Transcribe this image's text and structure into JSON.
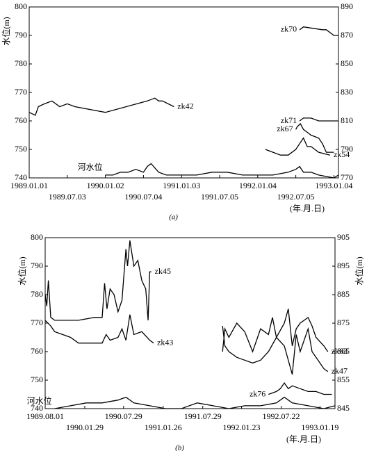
{
  "chart_data": [
    {
      "type": "line",
      "caption": "(a)",
      "y_label": "水位(m)",
      "x_unit_label": "(年.月.日)",
      "color": "#000000",
      "xlim": [
        1989.0,
        1993.06
      ],
      "xticks": [
        {
          "value": 1989.0,
          "label": "1989.01.01"
        },
        {
          "value": 1989.5,
          "label": "1989.07.03"
        },
        {
          "value": 1990.0,
          "label": "1990.01.02"
        },
        {
          "value": 1990.5,
          "label": "1990.07.04"
        },
        {
          "value": 1991.0,
          "label": "1991.01.03"
        },
        {
          "value": 1991.5,
          "label": "1991.07.05"
        },
        {
          "value": 1992.0,
          "label": "1992.01.04"
        },
        {
          "value": 1992.5,
          "label": "1992.07.05"
        },
        {
          "value": 1993.0,
          "label": "1993.01.04"
        }
      ],
      "ylim": [
        740,
        800
      ],
      "yticks": [
        740,
        750,
        760,
        770,
        780,
        790,
        800
      ],
      "y2lim": [
        770,
        890
      ],
      "y2ticks": [
        770,
        790,
        810,
        830,
        850,
        870,
        890
      ],
      "series": [
        {
          "name": "河水位",
          "x": [
            1990.0,
            1990.1,
            1990.2,
            1990.3,
            1990.4,
            1990.5,
            1990.55,
            1990.6,
            1990.7,
            1990.8,
            1990.9,
            1991.0,
            1991.2,
            1991.4,
            1991.5,
            1991.6,
            1991.8,
            1992.0,
            1992.2,
            1992.4,
            1992.5,
            1992.55,
            1992.6,
            1992.7,
            1992.8,
            1993.0,
            1993.06
          ],
          "values": [
            741,
            741,
            742,
            742,
            743,
            742,
            744,
            745,
            742,
            741,
            741,
            741,
            741,
            742,
            742,
            742,
            741,
            741,
            741,
            742,
            743,
            744,
            742,
            742,
            741,
            740,
            741
          ]
        },
        {
          "name": "zk42",
          "x": [
            1989.0,
            1989.08,
            1989.12,
            1989.2,
            1989.3,
            1989.4,
            1989.5,
            1989.6,
            1989.8,
            1990.0,
            1990.55,
            1990.65,
            1990.7,
            1990.75,
            1990.9
          ],
          "values": [
            763,
            762,
            765,
            766,
            767,
            765,
            766,
            765,
            764,
            763,
            767,
            768,
            767,
            767,
            765
          ]
        },
        {
          "name": "zk70",
          "x": [
            1992.55,
            1992.6,
            1992.85,
            1992.9,
            1993.0,
            1993.06
          ],
          "values": [
            792,
            793,
            792,
            792,
            790,
            790
          ]
        },
        {
          "name": "zk71",
          "x": [
            1992.55,
            1992.6,
            1992.7,
            1992.8,
            1992.9,
            1993.0,
            1993.05
          ],
          "values": [
            760,
            761,
            761,
            760,
            760,
            760,
            760
          ]
        },
        {
          "name": "zk67",
          "x": [
            1992.5,
            1992.52,
            1992.56,
            1992.6,
            1992.65,
            1992.7,
            1992.8,
            1992.85,
            1992.9,
            1993.0
          ],
          "values": [
            757,
            758,
            759,
            757,
            756,
            755,
            754,
            752,
            749,
            749
          ]
        },
        {
          "name": "zk54",
          "x": [
            1992.1,
            1992.2,
            1992.3,
            1992.4,
            1992.5,
            1992.55,
            1992.6,
            1992.65,
            1992.7,
            1992.8,
            1992.95
          ],
          "values": [
            750,
            749,
            748,
            748,
            750,
            752,
            754,
            751,
            751,
            749,
            748
          ]
        }
      ]
    },
    {
      "type": "line",
      "caption": "(b)",
      "y_label": "水位(m)",
      "y2_label": "水位(m)",
      "x_unit_label": "(年.月.日)",
      "color": "#000000",
      "xlim": [
        1989.58,
        1993.24
      ],
      "xticks": [
        {
          "value": 1989.58,
          "label": "1989.08.01"
        },
        {
          "value": 1990.08,
          "label": "1990.01.29"
        },
        {
          "value": 1990.57,
          "label": "1990.07.29"
        },
        {
          "value": 1991.07,
          "label": "1991.01.26"
        },
        {
          "value": 1991.57,
          "label": "1991.07.29"
        },
        {
          "value": 1992.06,
          "label": "1992.01.23"
        },
        {
          "value": 1992.56,
          "label": "1992.07.22"
        },
        {
          "value": 1993.05,
          "label": "1993.01.19"
        }
      ],
      "ylim": [
        740,
        800
      ],
      "yticks": [
        740,
        750,
        760,
        770,
        780,
        790,
        800
      ],
      "y2lim": [
        845,
        905
      ],
      "y2ticks": [
        845,
        855,
        865,
        875,
        885,
        895,
        905
      ],
      "series": [
        {
          "name": "河水位",
          "x": [
            1989.7,
            1989.9,
            1990.1,
            1990.3,
            1990.5,
            1990.6,
            1990.7,
            1990.9,
            1991.1,
            1991.3,
            1991.5,
            1991.7,
            1991.9,
            1992.1,
            1992.3,
            1992.5,
            1992.6,
            1992.7,
            1992.9,
            1993.1,
            1993.24
          ],
          "values": [
            740,
            741,
            742,
            742,
            743,
            744,
            742,
            741,
            740,
            740,
            742,
            741,
            740,
            741,
            741,
            742,
            744,
            742,
            741,
            740,
            741
          ]
        },
        {
          "name": "zk45",
          "x": [
            1989.58,
            1989.6,
            1989.62,
            1989.65,
            1989.7,
            1989.8,
            1990.0,
            1990.2,
            1990.3,
            1990.33,
            1990.36,
            1990.4,
            1990.45,
            1990.5,
            1990.55,
            1990.6,
            1990.62,
            1990.65,
            1990.7,
            1990.75,
            1990.8,
            1990.85,
            1990.88,
            1990.9,
            1990.92
          ],
          "values": [
            780,
            776,
            785,
            772,
            771,
            771,
            771,
            772,
            772,
            784,
            775,
            782,
            780,
            774,
            778,
            796,
            790,
            799,
            790,
            792,
            785,
            782,
            771,
            788,
            788
          ]
        },
        {
          "name": "zk43",
          "x": [
            1989.58,
            1989.65,
            1989.7,
            1989.8,
            1989.9,
            1990.0,
            1990.2,
            1990.3,
            1990.35,
            1990.4,
            1990.5,
            1990.55,
            1990.6,
            1990.65,
            1990.7,
            1990.8,
            1990.9,
            1990.95
          ],
          "values": [
            771,
            769,
            767,
            766,
            765,
            763,
            763,
            763,
            766,
            764,
            765,
            768,
            764,
            773,
            766,
            767,
            764,
            763
          ]
        },
        {
          "name": "zk63",
          "x": [
            1991.82,
            1991.85,
            1991.9,
            1992.0,
            1992.1,
            1992.2,
            1992.3,
            1992.4,
            1992.45,
            1992.5,
            1992.6,
            1992.65,
            1992.7,
            1992.75,
            1992.8,
            1992.9,
            1992.95,
            1993.0,
            1993.1,
            1993.15
          ],
          "values": [
            760,
            768,
            765,
            770,
            767,
            760,
            768,
            766,
            772,
            765,
            770,
            775,
            762,
            768,
            770,
            772,
            769,
            765,
            762,
            760
          ]
        },
        {
          "name": "zk47",
          "x": [
            1991.82,
            1991.85,
            1991.9,
            1992.0,
            1992.1,
            1992.2,
            1992.3,
            1992.4,
            1992.5,
            1992.6,
            1992.7,
            1992.75,
            1992.8,
            1992.9,
            1992.95,
            1993.05,
            1993.1,
            1993.15
          ],
          "values": [
            769,
            762,
            760,
            758,
            757,
            756,
            757,
            760,
            765,
            762,
            752,
            766,
            760,
            768,
            760,
            756,
            754,
            753
          ]
        },
        {
          "name": "zk76",
          "x": [
            1992.4,
            1992.5,
            1992.55,
            1992.6,
            1992.65,
            1992.7,
            1992.8,
            1992.9,
            1993.0,
            1993.1,
            1993.2
          ],
          "values": [
            745,
            746,
            747,
            749,
            747,
            748,
            747,
            746,
            746,
            745,
            745
          ]
        }
      ]
    }
  ]
}
